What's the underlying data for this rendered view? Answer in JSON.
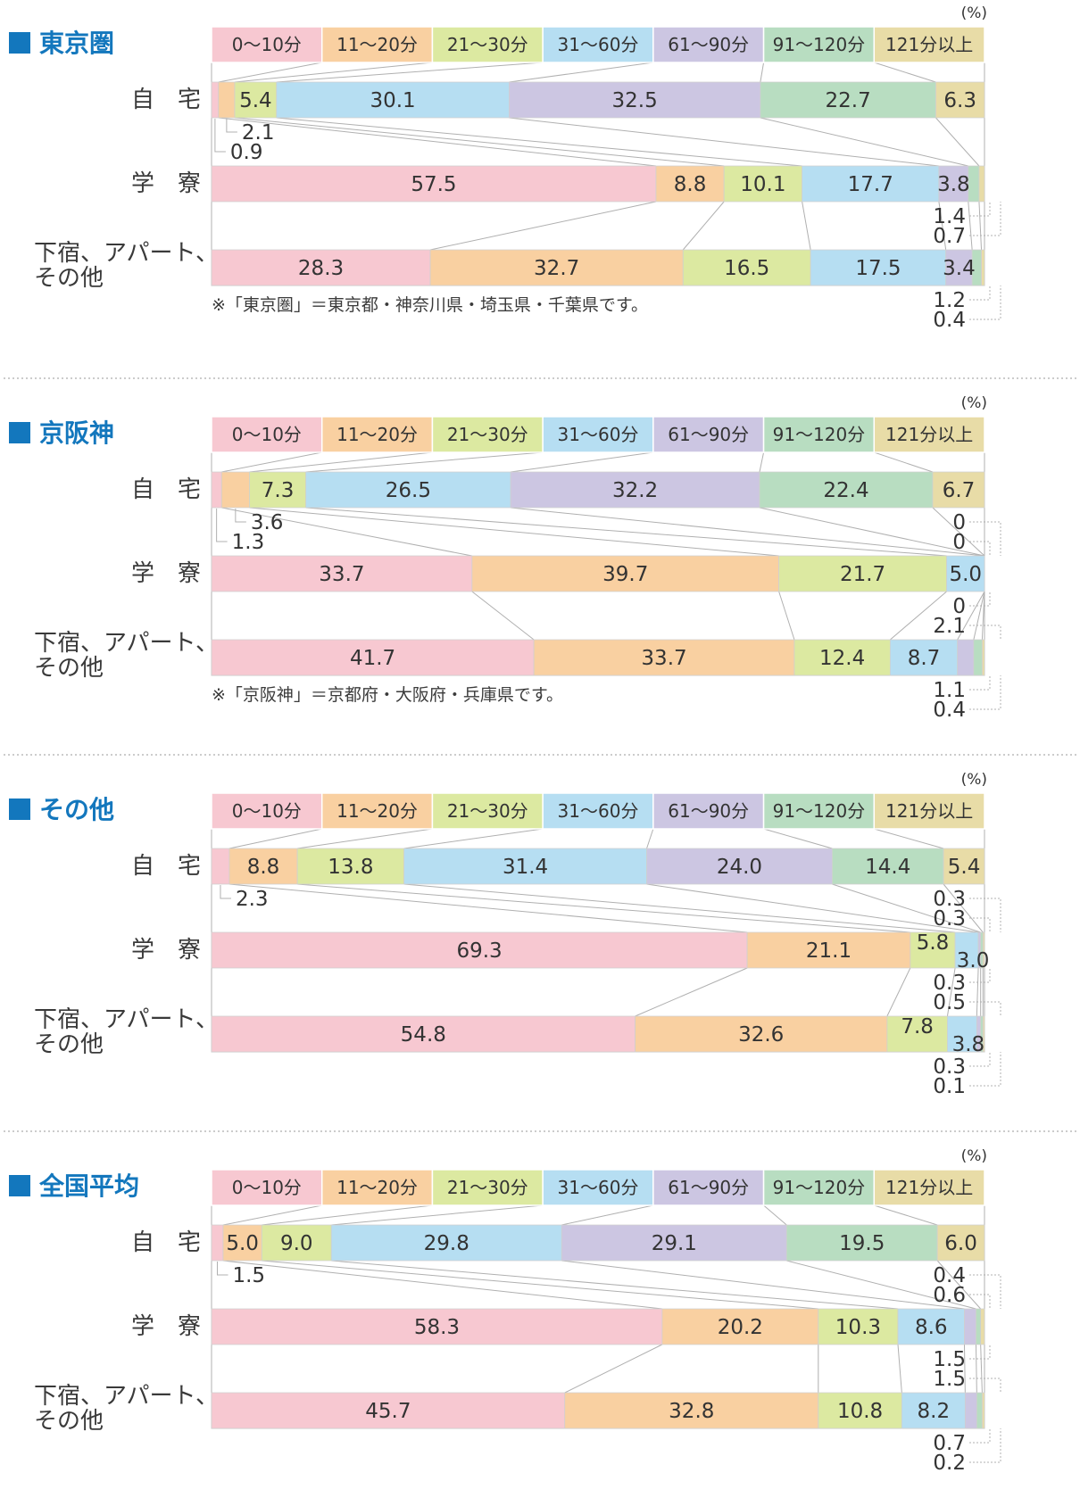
{
  "chart_data": {
    "type": "bar",
    "orientation": "horizontal",
    "stacked": true,
    "unit": "(%)",
    "xlim": [
      0,
      100
    ],
    "grid": false,
    "legend_position": "top",
    "categories": [
      "0～10分",
      "11～20分",
      "21～30分",
      "31～60分",
      "61～90分",
      "91～120分",
      "121分以上"
    ],
    "colors": [
      "#f7c8d1",
      "#f9d0a1",
      "#dce9a1",
      "#b6def2",
      "#ccc6e2",
      "#b8ddc1",
      "#e8dca7"
    ],
    "accent_color": "#1377bd",
    "line_color": "#b0b0b0",
    "text_color": "#333333",
    "sections": [
      {
        "id": "tokyo",
        "title": "東京圏",
        "footnote": "※「東京圏」＝東京都・神奈川県・埼玉県・千葉県です。",
        "rows": [
          {
            "label": "自　宅",
            "values": [
              0.9,
              2.1,
              5.4,
              30.1,
              32.5,
              22.7,
              6.3
            ]
          },
          {
            "label": "学　寮",
            "values": [
              57.5,
              8.8,
              10.1,
              17.7,
              3.8,
              1.4,
              0.7
            ]
          },
          {
            "label": "下宿、アパート、その他",
            "label_lines": [
              "下宿、アパート、",
              "その他"
            ],
            "values": [
              28.3,
              32.7,
              16.5,
              17.5,
              3.4,
              1.2,
              0.4
            ]
          }
        ],
        "callouts": {
          "left": [
            [
              0,
              1
            ],
            [
              0,
              0
            ]
          ],
          "a_right": [],
          "b_right": [
            [
              1,
              5,
              "up",
              6
            ],
            [
              1,
              6,
              "up",
              18
            ]
          ],
          "c_right": [
            [
              2,
              5,
              "up",
              6
            ],
            [
              2,
              6,
              "up",
              18
            ]
          ]
        }
      },
      {
        "id": "keihanshin",
        "title": "京阪神",
        "footnote": "※「京阪神」＝京都府・大阪府・兵庫県です。",
        "rows": [
          {
            "label": "自　宅",
            "values": [
              1.3,
              3.6,
              7.3,
              26.5,
              32.2,
              22.4,
              6.7
            ]
          },
          {
            "label": "学　寮",
            "values": [
              33.7,
              39.7,
              21.7,
              5.0,
              0,
              0,
              0
            ]
          },
          {
            "label": "下宿、アパート、その他",
            "label_lines": [
              "下宿、アパート、",
              "その他"
            ],
            "values": [
              41.7,
              33.7,
              12.4,
              8.7,
              2.1,
              1.1,
              0.4
            ]
          }
        ],
        "callouts": {
          "left": [
            [
              0,
              1
            ],
            [
              0,
              0
            ]
          ],
          "a_right": [
            [
              1,
              6,
              "down",
              18
            ],
            [
              1,
              5,
              "down",
              6
            ]
          ],
          "b_right": [
            [
              1,
              4,
              "up",
              6
            ],
            [
              2,
              4,
              "down",
              18
            ]
          ],
          "c_right": [
            [
              2,
              5,
              "up",
              6
            ],
            [
              2,
              6,
              "up",
              18
            ]
          ]
        }
      },
      {
        "id": "sonota",
        "title": "その他",
        "footnote": "",
        "rows": [
          {
            "label": "自　宅",
            "values": [
              2.3,
              8.8,
              13.8,
              31.4,
              24.0,
              14.4,
              5.4
            ]
          },
          {
            "label": "学　寮",
            "values": [
              69.3,
              21.1,
              5.8,
              3.0,
              0.3,
              0.3,
              0.3
            ]
          },
          {
            "label": "下宿、アパート、その他",
            "label_lines": [
              "下宿、アパート、",
              "その他"
            ],
            "values": [
              54.8,
              32.6,
              7.8,
              3.8,
              0.5,
              0.3,
              0.1
            ]
          }
        ],
        "callouts": {
          "left": [
            [
              0,
              0
            ]
          ],
          "a_right": [
            [
              1,
              6,
              "down",
              18
            ],
            [
              1,
              5,
              "down",
              6
            ]
          ],
          "b_right": [
            [
              1,
              4,
              "up",
              6
            ],
            [
              2,
              4,
              "down",
              18
            ]
          ],
          "c_right": [
            [
              2,
              5,
              "up",
              6
            ],
            [
              2,
              6,
              "up",
              18
            ]
          ]
        }
      },
      {
        "id": "zenkoku",
        "title": "全国平均",
        "footnote": "",
        "rows": [
          {
            "label": "自　宅",
            "values": [
              1.5,
              5.0,
              9.0,
              29.8,
              29.1,
              19.5,
              6.0
            ]
          },
          {
            "label": "学　寮",
            "values": [
              58.3,
              20.2,
              10.3,
              8.6,
              1.5,
              0.6,
              0.4
            ]
          },
          {
            "label": "下宿、アパート、その他",
            "label_lines": [
              "下宿、アパート、",
              "その他"
            ],
            "values": [
              45.7,
              32.8,
              10.8,
              8.2,
              1.5,
              0.7,
              0.2
            ]
          }
        ],
        "callouts": {
          "left": [
            [
              0,
              0
            ]
          ],
          "a_right": [
            [
              1,
              6,
              "down",
              18
            ],
            [
              1,
              5,
              "down",
              6
            ]
          ],
          "b_right": [
            [
              1,
              4,
              "up",
              6
            ],
            [
              2,
              4,
              "down",
              18
            ]
          ],
          "c_right": [
            [
              2,
              5,
              "up",
              6
            ],
            [
              2,
              6,
              "up",
              18
            ]
          ]
        }
      }
    ]
  }
}
